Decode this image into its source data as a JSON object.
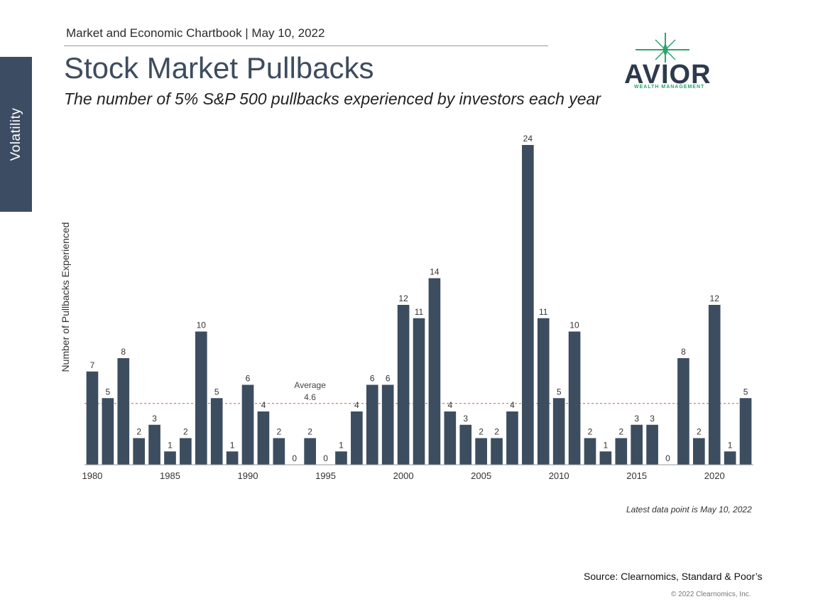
{
  "header": {
    "chartbook_line": "Market and Economic Chartbook | May 10, 2022",
    "side_tab_label": "Volatility"
  },
  "logo": {
    "name": "AVIOR",
    "tagline": "WEALTH MANAGEMENT",
    "star_color": "#2fa36b"
  },
  "chart_data": {
    "type": "bar",
    "title": "Stock Market Pullbacks",
    "subtitle": "The number of 5% S&P 500 pullbacks experienced by investors each year",
    "ylabel": "Number of Pullbacks Experienced",
    "xlabel": "",
    "categories": [
      1980,
      1981,
      1982,
      1983,
      1984,
      1985,
      1986,
      1987,
      1988,
      1989,
      1990,
      1991,
      1992,
      1993,
      1994,
      1995,
      1996,
      1997,
      1998,
      1999,
      2000,
      2001,
      2002,
      2003,
      2004,
      2005,
      2006,
      2007,
      2008,
      2009,
      2010,
      2011,
      2012,
      2013,
      2014,
      2015,
      2016,
      2017,
      2018,
      2019,
      2020,
      2021,
      2022
    ],
    "values": [
      7,
      5,
      8,
      2,
      3,
      1,
      2,
      10,
      5,
      1,
      6,
      4,
      2,
      0,
      2,
      0,
      1,
      4,
      6,
      6,
      12,
      11,
      14,
      4,
      3,
      2,
      2,
      4,
      24,
      11,
      5,
      10,
      2,
      1,
      2,
      3,
      3,
      0,
      8,
      2,
      12,
      1,
      5
    ],
    "xtick_labels": [
      "1980",
      "1985",
      "1990",
      "1995",
      "2000",
      "2005",
      "2010",
      "2015",
      "2020"
    ],
    "ylim": [
      0,
      24
    ],
    "average": {
      "label": "Average",
      "value": 4.6
    },
    "bar_color": "#3c4d5f",
    "average_line_color": "#d9534f",
    "grid": false
  },
  "notes": {
    "latest": "Latest data point is May 10, 2022",
    "source": "Source: Clearnomics, Standard & Poor’s",
    "copyright": "© 2022 Clearnomics, Inc."
  }
}
